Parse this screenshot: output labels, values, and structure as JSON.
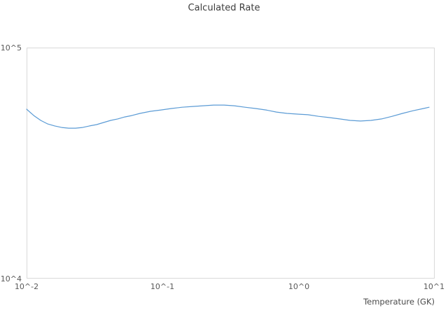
{
  "chart_data": {
    "type": "line",
    "title": "Calculated Rate",
    "xlabel": "Temperature (GK)",
    "ylabel": "",
    "x_scale": "log",
    "y_scale": "log",
    "xlim": [
      0.01,
      10
    ],
    "ylim": [
      10000,
      100000
    ],
    "grid": "off",
    "legend": "none",
    "x_tick_labels": [
      "10^-2",
      "10^-1",
      "10^0",
      "10^1"
    ],
    "x_tick_values": [
      0.01,
      0.1,
      1,
      10
    ],
    "y_tick_labels": [
      "10^4",
      "10^5"
    ],
    "y_tick_values": [
      10000,
      100000
    ],
    "line_color": "#5b9bd5",
    "border_color": "#d9d9d9",
    "series": [
      {
        "name": "calculated-rate",
        "x": [
          0.01,
          0.0113,
          0.0127,
          0.0143,
          0.0161,
          0.0181,
          0.0204,
          0.0229,
          0.0258,
          0.029,
          0.0327,
          0.0368,
          0.0415,
          0.0467,
          0.0526,
          0.0592,
          0.0682,
          0.0815,
          0.0973,
          0.116,
          0.139,
          0.166,
          0.198,
          0.237,
          0.283,
          0.337,
          0.403,
          0.482,
          0.575,
          0.687,
          0.821,
          1.0,
          1.17,
          1.4,
          1.67,
          2.0,
          2.39,
          2.85,
          3.4,
          4.07,
          4.86,
          5.8,
          6.93,
          8.27,
          9.1
        ],
        "y": [
          54100,
          50800,
          48400,
          46700,
          45800,
          45100,
          44800,
          44800,
          45100,
          45800,
          46400,
          47400,
          48400,
          49100,
          50100,
          50800,
          51900,
          53000,
          53700,
          54500,
          55200,
          55600,
          56000,
          56400,
          56400,
          56000,
          55200,
          54500,
          53700,
          52600,
          51900,
          51500,
          51200,
          50400,
          49800,
          49100,
          48400,
          48100,
          48400,
          49100,
          50400,
          51900,
          53300,
          54500,
          55200
        ]
      }
    ]
  }
}
